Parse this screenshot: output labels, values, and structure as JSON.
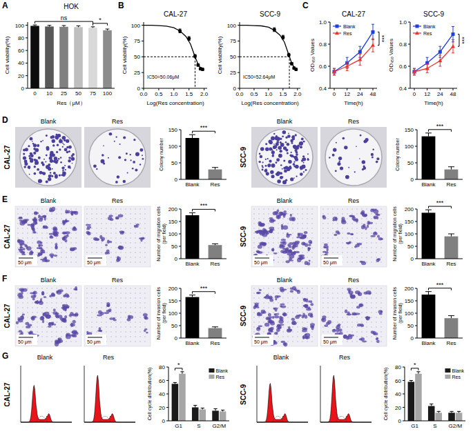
{
  "images": {
    "panel_letters": [
      "A",
      "B",
      "C",
      "D",
      "E",
      "F",
      "G"
    ],
    "row_labels": [
      "CAL-27",
      "SCC-9"
    ],
    "conditions": [
      "Blank",
      "Res"
    ],
    "scale_bar": "50 μm"
  },
  "chart_data": [
    {
      "type": "bar",
      "title": "HOK",
      "categories": [
        "0",
        "10",
        "25",
        "50",
        "75",
        "100"
      ],
      "values": [
        99,
        98,
        97.5,
        97,
        96,
        92
      ],
      "errors": [
        1.5,
        1.8,
        2,
        2,
        1.5,
        2
      ],
      "colors": [
        "#0d0d0d",
        "#595959",
        "#808080",
        "#bfbfbf",
        "#d9d9d9",
        "#8c8c8c"
      ],
      "ylim": [
        0,
        105
      ],
      "yticks": [
        0,
        20,
        40,
        60,
        80,
        100
      ],
      "x_label": "Res（μM）",
      "y_label": "Cell viability(%)",
      "annotations": [
        {
          "text": "ns",
          "between": [
            "0",
            "75"
          ]
        },
        {
          "text": "*",
          "between": [
            "75",
            "100"
          ]
        }
      ]
    },
    {
      "type": "line",
      "title": "CAL-27",
      "x_label": "Log(Res concentration)",
      "y_label": "Cell viability(%)",
      "xlim": [
        0,
        2.1
      ],
      "xticks": [
        {
          "value": 0,
          "label": "0.0"
        },
        0.5,
        {
          "value": 1,
          "label": "1.0"
        },
        1.5,
        {
          "value": 2,
          "label": "2.0"
        }
      ],
      "ylim": [
        0,
        105
      ],
      "yticks": [
        0,
        25,
        50,
        75,
        100
      ],
      "series": [
        {
          "x": [
            0,
            0.25,
            0.5,
            0.75,
            1,
            1.2,
            1.4,
            1.55,
            1.7,
            1.8,
            1.9,
            1.95
          ],
          "values": [
            100,
            100,
            99.5,
            98.5,
            96,
            91,
            82,
            70,
            50,
            38,
            31,
            29
          ],
          "marker": "none",
          "line_style": "solid",
          "color": "#000000"
        },
        {
          "x": [
            1.2,
            1.5,
            1.7,
            1.8,
            1.88,
            1.95
          ],
          "values": [
            91,
            79,
            51,
            37,
            31,
            30
          ],
          "errors": [
            3,
            3,
            2.5,
            2,
            2,
            2
          ],
          "marker": "circle",
          "line_style": "none",
          "color": "#000000"
        }
      ],
      "reference_lines": [
        {
          "axis": "y",
          "value": 50
        },
        {
          "axis": "x",
          "value": 1.7
        }
      ],
      "annotations": [
        {
          "text": "IC50=50.06μM"
        }
      ]
    },
    {
      "type": "line",
      "title": "SCC-9",
      "x_label": "Log(Res concentration)",
      "y_label": "Cell viability(%)",
      "xlim": [
        0,
        2.1
      ],
      "xticks": [
        {
          "value": 0,
          "label": "0.0"
        },
        0.5,
        {
          "value": 1,
          "label": "1.0"
        },
        1.5,
        {
          "value": 2,
          "label": "2.0"
        }
      ],
      "ylim": [
        0,
        105
      ],
      "yticks": [
        0,
        25,
        50,
        75,
        100
      ],
      "series": [
        {
          "x": [
            0,
            0.25,
            0.5,
            0.75,
            1,
            1.2,
            1.4,
            1.55,
            1.7,
            1.8,
            1.9,
            1.95
          ],
          "values": [
            100,
            100,
            99.5,
            99,
            97,
            92,
            84,
            73,
            53,
            40,
            32,
            30
          ],
          "marker": "none",
          "line_style": "solid",
          "color": "#000000"
        },
        {
          "x": [
            1.2,
            1.5,
            1.7,
            1.8,
            1.88,
            1.95
          ],
          "values": [
            93,
            81,
            53,
            39,
            32,
            30
          ],
          "errors": [
            3,
            3,
            2.5,
            2,
            2,
            2
          ],
          "marker": "circle",
          "line_style": "none",
          "color": "#000000"
        }
      ],
      "reference_lines": [
        {
          "axis": "y",
          "value": 50
        },
        {
          "axis": "x",
          "value": 1.72
        }
      ],
      "annotations": [
        {
          "text": "IC50=52.64μM"
        }
      ]
    },
    {
      "type": "line",
      "title": "CAL-27",
      "categories": [
        "0",
        "12",
        "24",
        "48"
      ],
      "x_label": "Time(h)",
      "y_label": "OD₄₅₀ Values",
      "ylim": [
        0.4,
        1.0
      ],
      "yticks": [
        0.4,
        0.6,
        0.8,
        {
          "value": 1,
          "label": "1.0"
        }
      ],
      "series": [
        {
          "name": "Blank",
          "color": "#1f3de0",
          "marker": "square",
          "values": [
            0.55,
            0.63,
            0.73,
            0.91
          ],
          "errors": [
            0.03,
            0.05,
            0.05,
            0.07
          ]
        },
        {
          "name": "Res",
          "color": "#f0302a",
          "marker": "triangle",
          "values": [
            0.55,
            0.6,
            0.66,
            0.79
          ],
          "errors": [
            0.03,
            0.04,
            0.05,
            0.06
          ]
        }
      ],
      "legend": "top-left",
      "annotations": [
        {
          "text": "***"
        }
      ]
    },
    {
      "type": "line",
      "title": "SCC-9",
      "categories": [
        "0",
        "12",
        "24",
        "48"
      ],
      "x_label": "Time(h)",
      "y_label": "OD₄₅₀ Values",
      "ylim": [
        0.4,
        1.0
      ],
      "yticks": [
        0.4,
        0.6,
        0.8,
        {
          "value": 1,
          "label": "1.0"
        }
      ],
      "series": [
        {
          "name": "Blank",
          "color": "#1f3de0",
          "marker": "square",
          "values": [
            0.55,
            0.63,
            0.73,
            0.89
          ],
          "errors": [
            0.03,
            0.05,
            0.05,
            0.07
          ]
        },
        {
          "name": "Res",
          "color": "#f0302a",
          "marker": "triangle",
          "values": [
            0.55,
            0.58,
            0.65,
            0.78
          ],
          "errors": [
            0.03,
            0.04,
            0.05,
            0.06
          ]
        }
      ],
      "legend": "top-left",
      "annotations": [
        {
          "text": "***"
        }
      ]
    },
    {
      "type": "bar",
      "categories": [
        "Blank",
        "Res"
      ],
      "values": [
        125,
        30
      ],
      "errors": [
        10,
        6
      ],
      "colors": [
        "#000000",
        "#808080"
      ],
      "ylim": [
        0,
        150
      ],
      "yticks": [
        0,
        50,
        100,
        150
      ],
      "y_label": "Colony number",
      "annotations": [
        {
          "text": "***",
          "between": [
            "Blank",
            "Res"
          ]
        }
      ]
    },
    {
      "type": "bar",
      "categories": [
        "Blank",
        "Res"
      ],
      "values": [
        130,
        30
      ],
      "errors": [
        10,
        8
      ],
      "colors": [
        "#000000",
        "#808080"
      ],
      "ylim": [
        0,
        150
      ],
      "yticks": [
        0,
        50,
        100,
        150
      ],
      "y_label": "Colony number",
      "annotations": [
        {
          "text": "***",
          "between": [
            "Blank",
            "Res"
          ]
        }
      ]
    },
    {
      "type": "bar",
      "categories": [
        "Blank",
        "Res"
      ],
      "values": [
        175,
        55
      ],
      "errors": [
        10,
        5
      ],
      "colors": [
        "#000000",
        "#808080"
      ],
      "ylim": [
        0,
        200
      ],
      "yticks": [
        0,
        50,
        100,
        150,
        200
      ],
      "y_label": "Number of migration cells (per field)",
      "annotations": [
        {
          "text": "***",
          "between": [
            "Blank",
            "Res"
          ]
        }
      ]
    },
    {
      "type": "bar",
      "categories": [
        "Blank",
        "Res"
      ],
      "values": [
        185,
        90
      ],
      "errors": [
        12,
        10
      ],
      "colors": [
        "#000000",
        "#808080"
      ],
      "ylim": [
        0,
        200
      ],
      "yticks": [
        0,
        50,
        100,
        150,
        200
      ],
      "y_label": "Number of migration cells (per field)",
      "annotations": [
        {
          "text": "***",
          "between": [
            "Blank",
            "Res"
          ]
        }
      ]
    },
    {
      "type": "bar",
      "categories": [
        "Blank",
        "Res"
      ],
      "values": [
        165,
        40
      ],
      "errors": [
        8,
        5
      ],
      "colors": [
        "#000000",
        "#808080"
      ],
      "ylim": [
        0,
        200
      ],
      "yticks": [
        0,
        50,
        100,
        150,
        200
      ],
      "y_label": "Number of invasion cells (per field)",
      "annotations": [
        {
          "text": "***",
          "between": [
            "Blank",
            "Res"
          ]
        }
      ]
    },
    {
      "type": "bar",
      "categories": [
        "Blank",
        "Res"
      ],
      "values": [
        175,
        80
      ],
      "errors": [
        12,
        10
      ],
      "colors": [
        "#000000",
        "#808080"
      ],
      "ylim": [
        0,
        200
      ],
      "yticks": [
        0,
        50,
        100,
        150,
        200
      ],
      "y_label": "Number of invasion cells (per field)",
      "annotations": [
        {
          "text": "***",
          "between": [
            "Blank",
            "Res"
          ]
        }
      ]
    },
    {
      "type": "bar",
      "categories": [
        "G1",
        "S",
        "G2/M"
      ],
      "series": [
        {
          "name": "Blank",
          "color": "#1a1a1a",
          "values": [
            55,
            20,
            15
          ],
          "errors": [
            2,
            3,
            3
          ]
        },
        {
          "name": "Res",
          "color": "#a6a6a6",
          "values": [
            70,
            17,
            14
          ],
          "errors": [
            3,
            2,
            2
          ]
        }
      ],
      "ylim": [
        0,
        80
      ],
      "yticks": [
        0,
        20,
        40,
        60,
        80
      ],
      "y_label": "Cell cycle distribution(%)",
      "legend": "top-right",
      "annotations": [
        {
          "text": "*",
          "category": "G1"
        }
      ]
    },
    {
      "type": "bar",
      "categories": [
        "G1",
        "S",
        "G2/M"
      ],
      "series": [
        {
          "name": "Blank",
          "color": "#1a1a1a",
          "values": [
            58,
            22,
            12
          ],
          "errors": [
            2,
            3,
            2
          ]
        },
        {
          "name": "Res",
          "color": "#a6a6a6",
          "values": [
            70,
            12,
            12
          ],
          "errors": [
            3,
            2,
            2
          ]
        }
      ],
      "ylim": [
        0,
        80
      ],
      "yticks": [
        0,
        20,
        40,
        60,
        80
      ],
      "y_label": "Cell cycle distribution(%)",
      "legend": "top-right",
      "annotations": [
        {
          "text": "*",
          "category": "G1"
        }
      ]
    }
  ]
}
